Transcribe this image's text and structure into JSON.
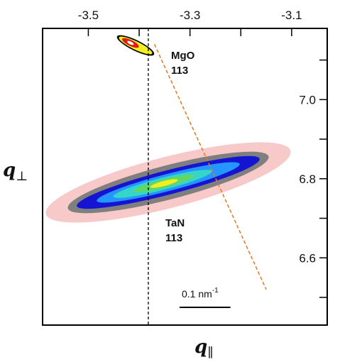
{
  "chart_data": {
    "type": "heatmap",
    "title": "",
    "x_axis": {
      "label": "q",
      "label_subscript": "∥",
      "ticks": [
        {
          "value": -3.5,
          "label": "-3.5"
        },
        {
          "value": -3.3,
          "label": "-3.3"
        },
        {
          "value": -3.1,
          "label": "-3.1"
        }
      ],
      "minor_ticks": [
        -3.4,
        -3.2
      ],
      "position": "top",
      "range": [
        -3.59,
        -3.03
      ]
    },
    "y_axis": {
      "label": "q",
      "label_subscript": "⊥",
      "ticks": [
        {
          "value": 7.0,
          "label": "7.0"
        },
        {
          "value": 6.8,
          "label": "6.8"
        },
        {
          "value": 6.6,
          "label": "6.6"
        }
      ],
      "minor_ticks": [
        7.1,
        6.9,
        6.7,
        6.5
      ],
      "position": "right",
      "range": [
        6.43,
        7.18
      ]
    },
    "peaks": [
      {
        "name_line1": "MgO",
        "name_line2": "113",
        "q_parallel": -3.399,
        "q_perp": 7.14
      },
      {
        "name_line1": "TaN",
        "name_line2": "113",
        "q_parallel": -3.34,
        "q_perp": 6.79
      }
    ],
    "reference_lines": [
      {
        "kind": "vertical",
        "style": "dashed",
        "color": "#000000",
        "q_parallel": -3.382
      },
      {
        "kind": "relaxation",
        "style": "dashed",
        "color": "#e07a1f",
        "from": [
          -3.37,
          7.14
        ],
        "to": [
          -3.15,
          6.52
        ]
      }
    ],
    "scale_bar": {
      "label": "0.1 nm",
      "superscript": "-1",
      "length": 0.1
    },
    "intensity_colors": [
      "#f7c9c9",
      "#7f7f7f",
      "#1414d2",
      "#2596ff",
      "#35d6c8",
      "#5fd86a",
      "#f2ee20",
      "#e11a1a"
    ]
  }
}
